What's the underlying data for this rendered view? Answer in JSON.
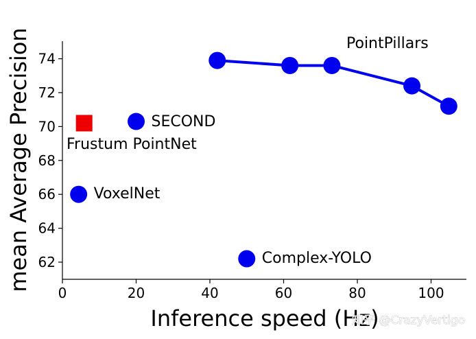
{
  "chart_data": {
    "type": "scatter",
    "title": "",
    "xlabel": "Inference speed (Hz)",
    "ylabel": "mean Average Precision",
    "xlim": [
      0,
      110
    ],
    "ylim": [
      61,
      75
    ],
    "xticks": [
      0,
      20,
      40,
      60,
      80,
      100
    ],
    "yticks": [
      62,
      64,
      66,
      68,
      70,
      72,
      74
    ],
    "grid": false,
    "series": [
      {
        "name": "PointPillars",
        "marker": "circle",
        "color": "#0000ee",
        "connected": true,
        "points": [
          {
            "x": 42,
            "y": 73.9
          },
          {
            "x": 61.7,
            "y": 73.6
          },
          {
            "x": 73.1,
            "y": 73.6
          },
          {
            "x": 94.8,
            "y": 72.4
          },
          {
            "x": 104.8,
            "y": 71.2
          }
        ],
        "label": "PointPillars"
      },
      {
        "name": "SECOND",
        "marker": "circle",
        "color": "#0000ee",
        "connected": false,
        "points": [
          {
            "x": 20,
            "y": 70.3
          }
        ],
        "label": "SECOND"
      },
      {
        "name": "VoxelNet",
        "marker": "circle",
        "color": "#0000ee",
        "connected": false,
        "points": [
          {
            "x": 4.4,
            "y": 66
          }
        ],
        "label": "VoxelNet"
      },
      {
        "name": "Complex-YOLO",
        "marker": "circle",
        "color": "#0000ee",
        "connected": false,
        "points": [
          {
            "x": 50,
            "y": 62.2
          }
        ],
        "label": "Complex-YOLO"
      },
      {
        "name": "Frustum PointNet",
        "marker": "square",
        "color": "#ee0000",
        "connected": false,
        "points": [
          {
            "x": 5.9,
            "y": 70.2
          }
        ],
        "label": "Frustum PointNet"
      }
    ]
  },
  "watermark": "知乎 @CrazyVertigo"
}
